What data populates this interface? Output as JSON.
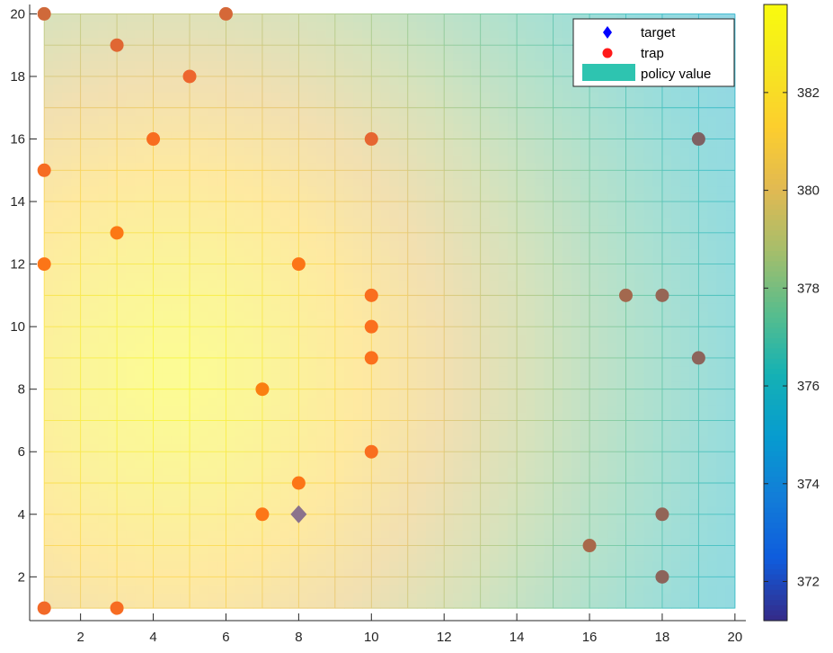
{
  "chart_data": {
    "type": "heatmap",
    "title": "",
    "xlabel": "",
    "ylabel": "",
    "xlim": [
      0.6,
      20.3
    ],
    "ylim": [
      0.6,
      20.3
    ],
    "grid_extent": {
      "x": [
        1,
        20
      ],
      "y": [
        1,
        20
      ]
    },
    "x_ticks": [
      2,
      4,
      6,
      8,
      10,
      12,
      14,
      16,
      18,
      20
    ],
    "y_ticks": [
      2,
      4,
      6,
      8,
      10,
      12,
      14,
      16,
      18,
      20
    ],
    "x_tick_labels": [
      "2",
      "4",
      "6",
      "8",
      "10",
      "12",
      "14",
      "16",
      "18",
      "20"
    ],
    "y_tick_labels": [
      "2",
      "4",
      "6",
      "8",
      "10",
      "12",
      "14",
      "16",
      "18",
      "20"
    ],
    "grid": true,
    "policy_value_field": {
      "description": "smooth field, peak near (4.5, 8.5)",
      "peak": {
        "x": 4.5,
        "y": 8.5,
        "value": 383.5
      },
      "min_value": 372.3,
      "peak_position": [
        4.5,
        8.5
      ],
      "decay": {
        "x_scale": 15.2,
        "y_scale": 19,
        "exponent": 1.4
      }
    },
    "colorbar": {
      "range": [
        371.2,
        383.8
      ],
      "ticks": [
        372,
        374,
        376,
        378,
        380,
        382
      ],
      "tick_labels": [
        "372",
        "374",
        "376",
        "378",
        "380",
        "382"
      ],
      "colormap": "parula"
    },
    "series": [
      {
        "name": "target",
        "marker": "diamond",
        "color": "#0000ff",
        "points": [
          [
            8,
            4
          ]
        ]
      },
      {
        "name": "trap",
        "marker": "circle",
        "color": "#ff0000",
        "points": [
          [
            1,
            20
          ],
          [
            6,
            20
          ],
          [
            3,
            19
          ],
          [
            5,
            18
          ],
          [
            4,
            16
          ],
          [
            10,
            16
          ],
          [
            19,
            16
          ],
          [
            1,
            15
          ],
          [
            3,
            13
          ],
          [
            1,
            12
          ],
          [
            8,
            12
          ],
          [
            10,
            11
          ],
          [
            17,
            11
          ],
          [
            18,
            11
          ],
          [
            10,
            10
          ],
          [
            10,
            9
          ],
          [
            19,
            9
          ],
          [
            7,
            8
          ],
          [
            10,
            6
          ],
          [
            8,
            5
          ],
          [
            7,
            4
          ],
          [
            18,
            4
          ],
          [
            16,
            3
          ],
          [
            18,
            2
          ],
          [
            1,
            1
          ],
          [
            3,
            1
          ]
        ]
      }
    ],
    "legend": {
      "position": "top-right",
      "entries": [
        "target",
        "trap",
        "policy value"
      ],
      "policy_value_color": "#2ec4b0"
    }
  }
}
